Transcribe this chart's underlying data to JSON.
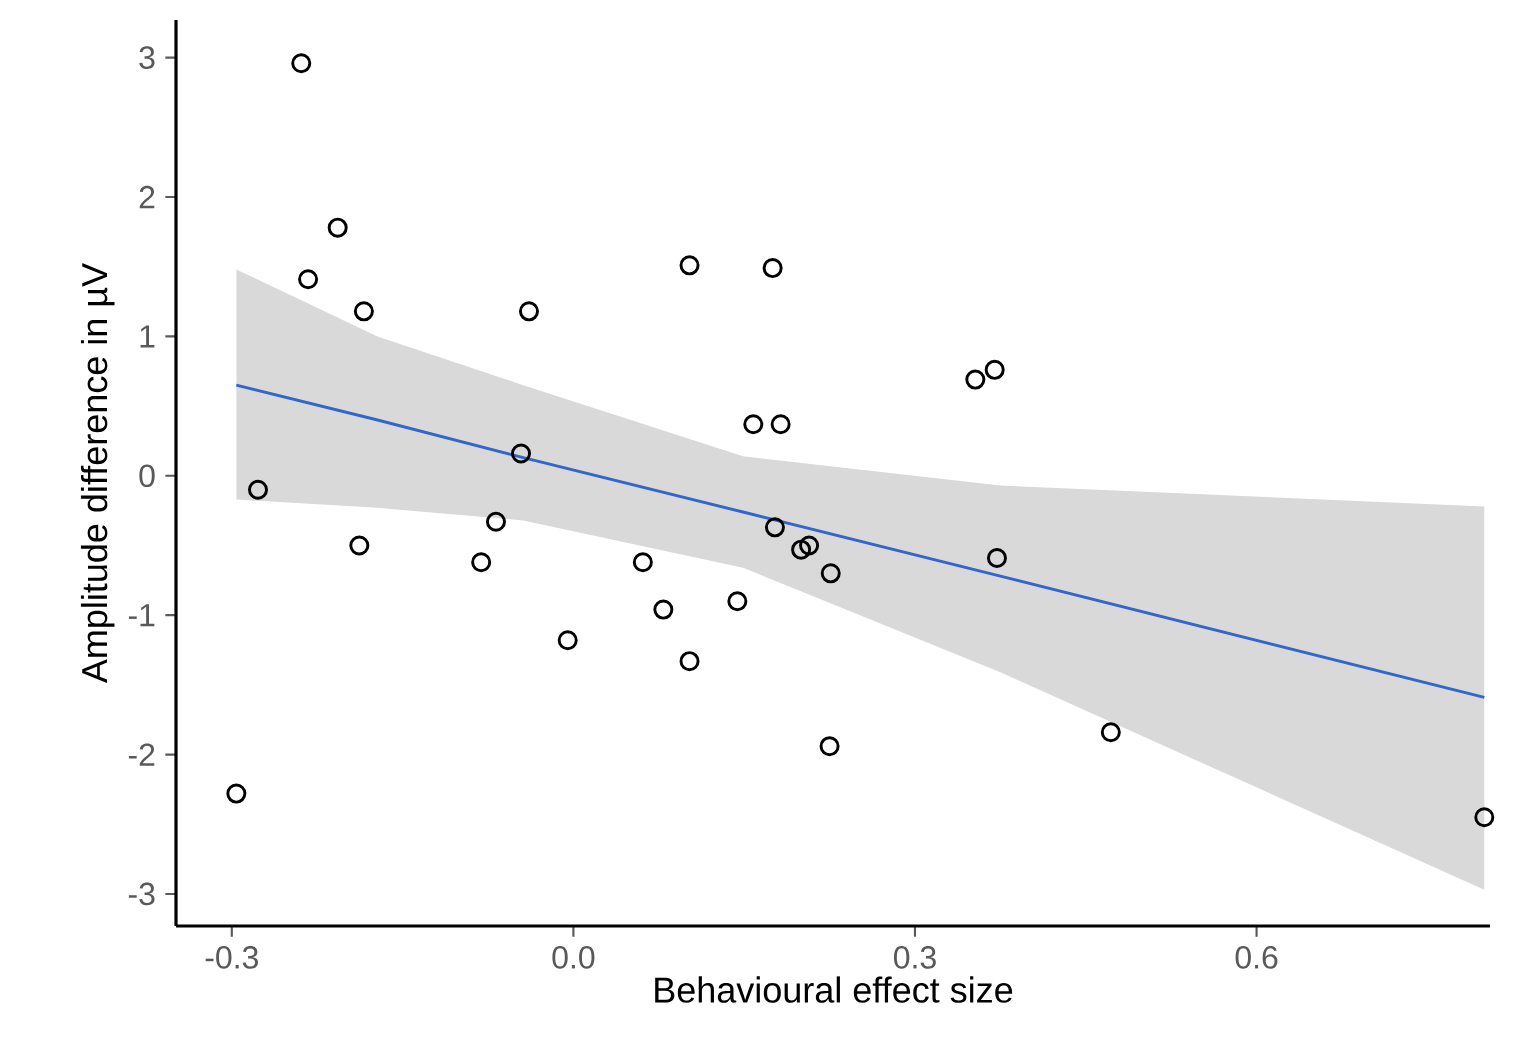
{
  "chart_data": {
    "type": "scatter",
    "xlabel": "Behavioural effect size",
    "ylabel": "Amplitude difference in  µV",
    "xlim": [
      -0.349,
      0.805
    ],
    "ylim": [
      -3.23,
      3.27
    ],
    "xticks": [
      -0.3,
      {
        "value": 0,
        "label": "0.0"
      },
      0.3,
      0.6
    ],
    "yticks": [
      -3,
      -2,
      -1,
      0,
      1,
      2,
      3
    ],
    "marker": "circle",
    "series": [
      {
        "color": "#000000",
        "x": [
          -0.239,
          -0.207,
          -0.233,
          -0.184,
          -0.277,
          -0.296,
          -0.188,
          -0.039,
          -0.046,
          -0.068,
          -0.081,
          -0.005,
          0.061,
          0.079,
          0.102,
          0.102,
          0.144,
          0.158,
          0.182,
          0.175,
          0.177,
          0.2,
          0.207,
          0.226,
          0.225,
          0.353,
          0.37,
          0.372,
          0.472,
          0.8
        ],
        "values": [
          2.96,
          1.78,
          1.41,
          1.18,
          -0.1,
          -2.28,
          -0.5,
          1.18,
          0.16,
          -0.33,
          -0.62,
          -1.18,
          -0.62,
          -0.96,
          1.51,
          -1.33,
          -0.9,
          0.37,
          0.37,
          1.49,
          -0.37,
          -0.53,
          -0.5,
          -0.7,
          -1.94,
          0.69,
          0.76,
          -0.59,
          -1.84,
          -2.45
        ]
      },
      {
        "type": "line",
        "color": "#3366cc",
        "marker": "none",
        "line_style": "solid",
        "x": [
          -0.296,
          -0.172,
          -0.044,
          0.149,
          0.375,
          0.8
        ],
        "values": [
          0.65,
          0.4,
          0.13,
          -0.26,
          -0.72,
          -1.59
        ],
        "lower": [
          -0.17,
          -0.23,
          -0.32,
          -0.66,
          -1.41,
          -2.97
        ],
        "upper": [
          1.48,
          1.0,
          0.65,
          0.14,
          -0.07,
          -0.22
        ]
      }
    ]
  }
}
